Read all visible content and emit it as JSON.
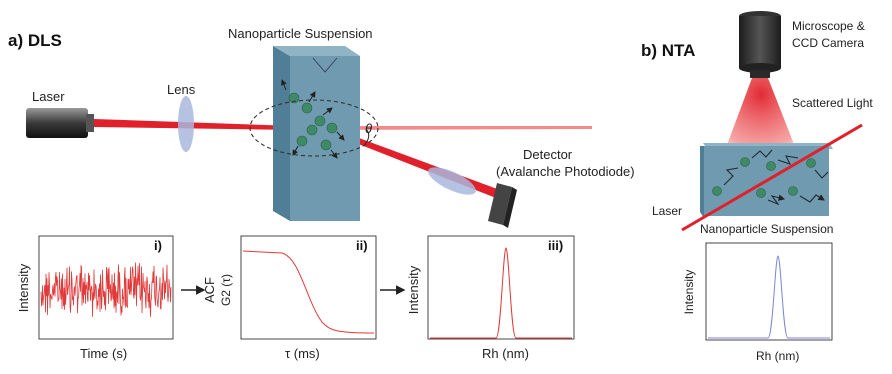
{
  "dls": {
    "heading": "a) DLS",
    "laser_label": "Laser",
    "lens_label": "Lens",
    "suspension_label": "Nanoparticle Suspension",
    "angle_label": "θ",
    "detector_label_1": "Detector",
    "detector_label_2": "(Avalanche Photodiode)",
    "panels": [
      {
        "tag": "i)",
        "ylabel": "Intensity",
        "xlabel": "Time (s)"
      },
      {
        "tag": "ii)",
        "ylabel_1": "ACF",
        "ylabel_2": "G2 (τ)",
        "xlabel": "τ (ms)"
      },
      {
        "tag": "iii)",
        "ylabel": "Intensity",
        "xlabel": "Rh (nm)"
      }
    ]
  },
  "nta": {
    "heading": "b) NTA",
    "microscope_label_1": "Microscope &",
    "microscope_label_2": "CCD Camera",
    "scattered_label": "Scattered Light",
    "laser_label": "Laser",
    "suspension_label": "Nanoparticle Suspension",
    "plot": {
      "ylabel": "Intensity",
      "xlabel": "Rh (nm)"
    }
  },
  "colors": {
    "beam": "#e0202a",
    "beam_light": "#f28a8a",
    "cuvette": "#6f9ab0",
    "particle": "#3f8a66",
    "lens": "#a9b7dd",
    "plot_red": "#e03a3a",
    "plot_blue": "#7d86d6"
  }
}
